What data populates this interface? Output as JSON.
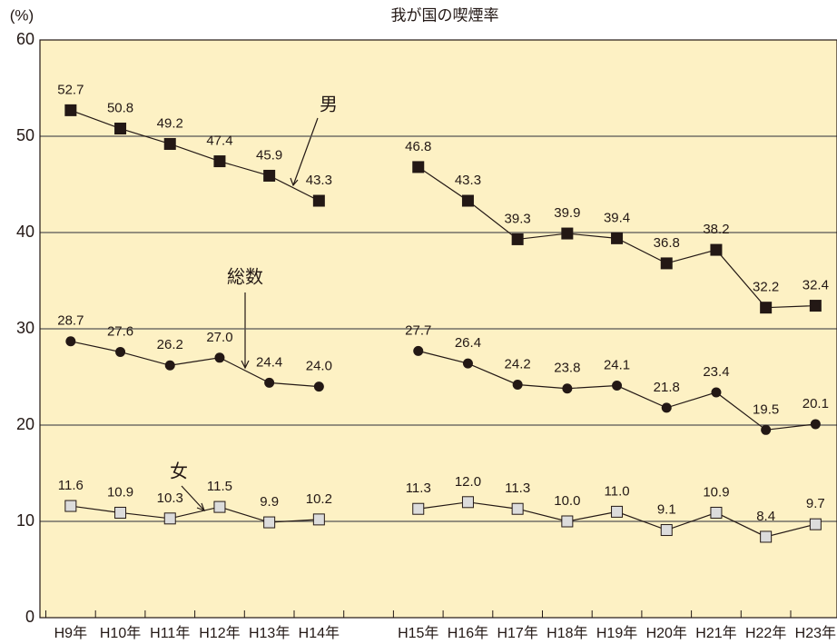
{
  "chart_data": {
    "type": "line",
    "title": "我が国の喫煙率",
    "y_label": "(%)",
    "categories": [
      "H9年",
      "H10年",
      "H11年",
      "H12年",
      "H13年",
      "H14年",
      null,
      "H15年",
      "H16年",
      "H17年",
      "H18年",
      "H19年",
      "H20年",
      "H21年",
      "H22年",
      "H23年"
    ],
    "ylim": [
      0,
      60
    ],
    "yticks": [
      0,
      10,
      20,
      30,
      40,
      50,
      60
    ],
    "grid": true,
    "series": [
      {
        "name": "男",
        "color": "#231815",
        "marker": "square",
        "values": [
          52.7,
          50.8,
          49.2,
          47.4,
          45.9,
          43.3,
          null,
          46.8,
          43.3,
          39.3,
          39.9,
          39.4,
          36.8,
          38.2,
          32.2,
          32.4
        ],
        "value_labels": [
          "52.7",
          "50.8",
          "49.2",
          "47.4",
          "45.9",
          "43.3",
          null,
          "46.8",
          "43.3",
          "39.3",
          "39.9",
          "39.4",
          "36.8",
          "38.2",
          "32.2",
          "32.4"
        ]
      },
      {
        "name": "総数",
        "color": "#231815",
        "marker": "circle",
        "values": [
          28.7,
          27.6,
          26.2,
          27.0,
          24.4,
          24.0,
          null,
          27.7,
          26.4,
          24.2,
          23.8,
          24.1,
          21.8,
          23.4,
          19.5,
          20.1
        ],
        "value_labels": [
          "28.7",
          "27.6",
          "26.2",
          "27.0",
          "24.4",
          "24.0",
          null,
          "27.7",
          "26.4",
          "24.2",
          "23.8",
          "24.1",
          "21.8",
          "23.4",
          "19.5",
          "20.1"
        ]
      },
      {
        "name": "女",
        "color": "#dcdcdc",
        "marker": "square",
        "values": [
          11.6,
          10.9,
          10.3,
          11.5,
          9.9,
          10.2,
          null,
          11.3,
          12.0,
          11.3,
          10.0,
          11.0,
          9.1,
          10.9,
          8.4,
          9.7
        ],
        "value_labels": [
          "11.6",
          "10.9",
          "10.3",
          "11.5",
          "9.9",
          "10.2",
          null,
          "11.3",
          "12.0",
          "11.3",
          "10.0",
          "11.0",
          "9.1",
          "10.9",
          "8.4",
          "9.7"
        ]
      }
    ]
  }
}
